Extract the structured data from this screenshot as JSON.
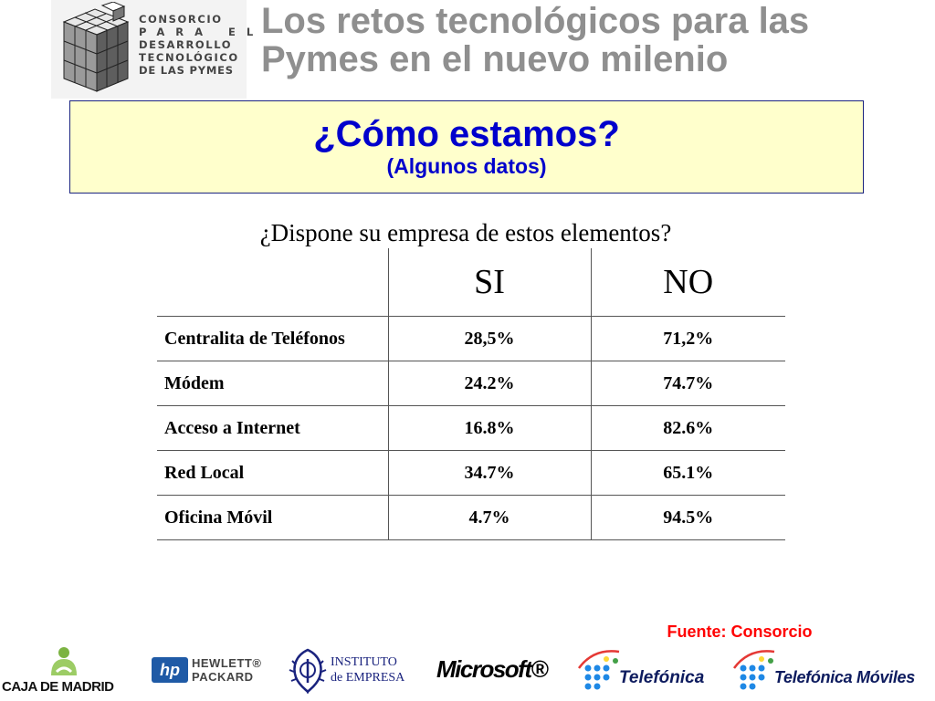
{
  "header": {
    "logo_lines": [
      "CONSORCIO",
      "PARA EL",
      "DESARROLLO",
      "TECNOLÓGICO",
      "DE LAS PYMES"
    ],
    "title_line1": "Los retos tecnológicos para las",
    "title_line2": "Pymes en el nuevo milenio"
  },
  "banner": {
    "title": "¿Cómo estamos?",
    "subtitle": "(Algunos datos)"
  },
  "question": "¿Dispone su empresa de estos elementos?",
  "table": {
    "headers": [
      "",
      "SI",
      "NO"
    ],
    "rows": [
      {
        "label": "Centralita de Teléfonos",
        "si": "28,5%",
        "no": "71,2%"
      },
      {
        "label": "Módem",
        "si": "24.2%",
        "no": "74.7%"
      },
      {
        "label": "Acceso a Internet",
        "si": "16.8%",
        "no": "82.6%"
      },
      {
        "label": "Red Local",
        "si": "34.7%",
        "no": "65.1%"
      },
      {
        "label": "Oficina Móvil",
        "si": "4.7%",
        "no": "94.5%"
      }
    ]
  },
  "source": "Fuente: Consorcio",
  "sponsors": {
    "caja_madrid": "CAJA DE MADRID",
    "hp_line1": "HEWLETT®",
    "hp_line2": "PACKARD",
    "ie_line1": "INSTITUTO",
    "ie_line2": "de EMPRESA",
    "microsoft": "Microsoft®",
    "telefonica": "Telefónica",
    "telefonica_moviles": "Telefónica Móviles"
  },
  "colors": {
    "title_gray": "#8f8f8f",
    "banner_bg": "#ffffcc",
    "banner_text": "#0000cc",
    "source_red": "#ff0000"
  }
}
